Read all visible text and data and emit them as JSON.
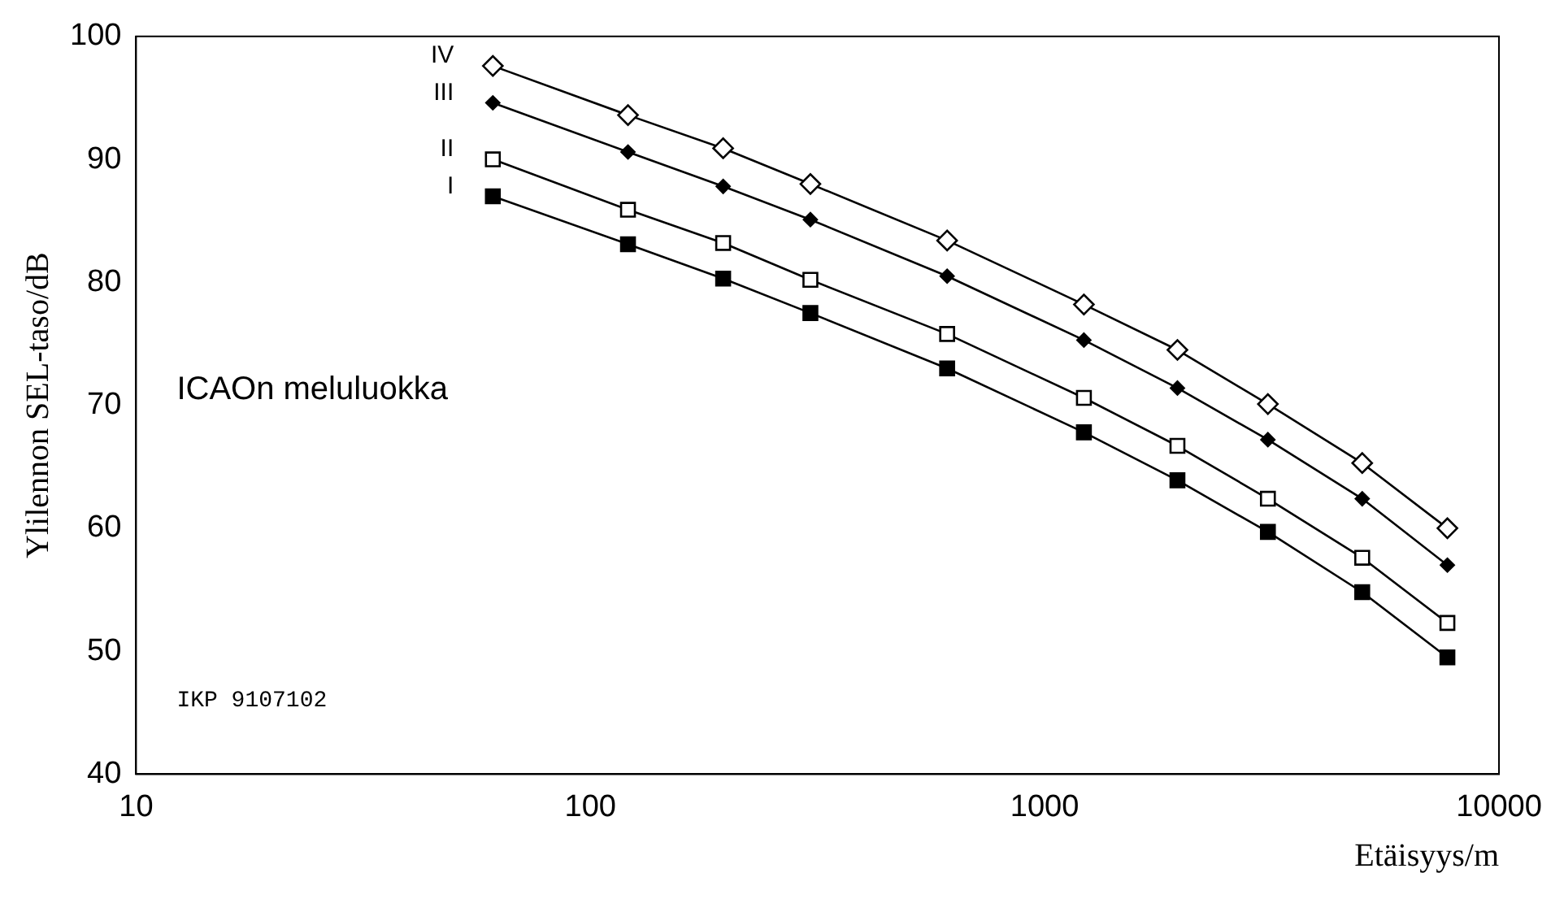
{
  "chart_data": {
    "type": "line",
    "xlabel": "Etäisyys/m",
    "ylabel": "Ylilennon SEL-taso/dB",
    "x": [
      61,
      121,
      196,
      305,
      610,
      1220,
      1960,
      3100,
      5000,
      7700
    ],
    "series": [
      {
        "name": "IV",
        "color": "#000000",
        "marker": "diamond",
        "values": [
          97.6,
          93.6,
          90.9,
          88.0,
          83.4,
          78.2,
          74.5,
          70.1,
          65.3,
          60.0
        ]
      },
      {
        "name": "III",
        "color": "#000000",
        "marker": "diamond",
        "values": [
          94.6,
          90.6,
          87.8,
          85.1,
          80.5,
          75.3,
          71.4,
          67.2,
          62.4,
          57.0
        ]
      },
      {
        "name": "II",
        "color": "#000000",
        "marker": "square",
        "values": [
          90.0,
          85.9,
          83.2,
          80.2,
          75.8,
          70.6,
          66.7,
          62.4,
          57.6,
          52.3
        ]
      },
      {
        "name": "I",
        "color": "#000000",
        "marker": "square",
        "values": [
          87.0,
          83.1,
          80.3,
          77.5,
          73.0,
          67.8,
          63.9,
          59.7,
          54.8,
          49.5
        ]
      }
    ],
    "log": "x",
    "xlim": [
      10,
      10000
    ],
    "xticks": [
      10,
      100,
      1000,
      10000
    ],
    "ylim": [
      40,
      100
    ],
    "yticks": [
      40,
      50,
      60,
      70,
      80,
      90,
      100
    ],
    "grid": false,
    "legend": false,
    "line_style": "solid",
    "annotations": [
      "ICAOn meluluokka",
      "IKP 9107102"
    ]
  }
}
